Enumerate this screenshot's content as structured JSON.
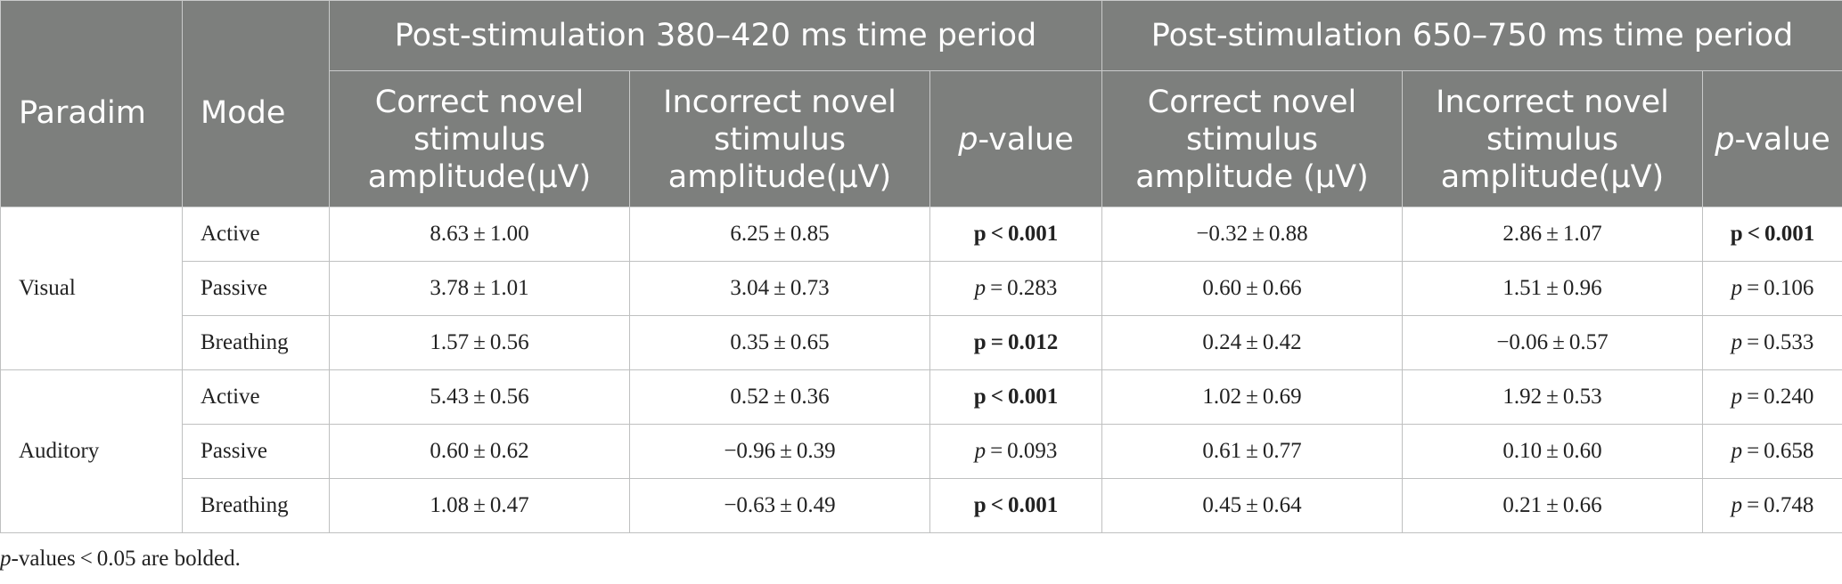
{
  "header": {
    "paradigm": "Paradim",
    "mode": "Mode",
    "group1": "Post-stimulation 380–420 ms time period",
    "group2": "Post-stimulation 650–750 ms time period",
    "correct": "Correct novel stimulus amplitude(μV)",
    "incorrect": "Incorrect novel stimulus amplitude(μV)",
    "correct2": "Correct novel stimulus amplitude (μV)",
    "incorrect2": "Incorrect novel stimulus amplitude(μV)",
    "p_italic": "p",
    "p_rest": "-value"
  },
  "rows": [
    {
      "paradigm": "Visual",
      "mode": "Active",
      "c1": "8.63 ± 1.00",
      "i1": "6.25 ± 0.85",
      "p1_prefix": "p",
      "p1": " < 0.001",
      "p1_bold": true,
      "c2": "−0.32 ± 0.88",
      "i2": "2.86 ± 1.07",
      "p2_prefix": "p",
      "p2": " < 0.001",
      "p2_bold": true
    },
    {
      "paradigm": "",
      "mode": "Passive",
      "c1": "3.78 ± 1.01",
      "i1": "3.04 ± 0.73",
      "p1_prefix": "p",
      "p1": " = 0.283",
      "p1_bold": false,
      "c2": "0.60 ± 0.66",
      "i2": "1.51 ± 0.96",
      "p2_prefix": "p",
      "p2": " = 0.106",
      "p2_bold": false
    },
    {
      "paradigm": "",
      "mode": "Breathing",
      "c1": "1.57 ± 0.56",
      "i1": "0.35 ± 0.65",
      "p1_prefix": "p",
      "p1": " = 0.012",
      "p1_bold": true,
      "c2": "0.24 ± 0.42",
      "i2": "−0.06 ± 0.57",
      "p2_prefix": "p",
      "p2": " = 0.533",
      "p2_bold": false
    },
    {
      "paradigm": "Auditory",
      "mode": "Active",
      "c1": "5.43 ± 0.56",
      "i1": "0.52 ± 0.36",
      "p1_prefix": "p",
      "p1": " < 0.001",
      "p1_bold": true,
      "c2": "1.02 ± 0.69",
      "i2": "1.92 ± 0.53",
      "p2_prefix": "p",
      "p2": " = 0.240",
      "p2_bold": false
    },
    {
      "paradigm": "",
      "mode": "Passive",
      "c1": "0.60 ± 0.62",
      "i1": "−0.96 ± 0.39",
      "p1_prefix": "p",
      "p1": " = 0.093",
      "p1_bold": false,
      "c2": "0.61 ± 0.77",
      "i2": "0.10 ± 0.60",
      "p2_prefix": "p",
      "p2": " = 0.658",
      "p2_bold": false
    },
    {
      "paradigm": "",
      "mode": "Breathing",
      "c1": "1.08 ± 0.47",
      "i1": "−0.63 ± 0.49",
      "p1_prefix": "p",
      "p1": " < 0.001",
      "p1_bold": true,
      "c2": "0.45 ± 0.64",
      "i2": "0.21 ± 0.66",
      "p2_prefix": "p",
      "p2": " = 0.748",
      "p2_bold": false
    }
  ],
  "footnote": {
    "italic": "p",
    "text": "-values < 0.05 are bolded."
  },
  "colors": {
    "header_bg": "#7d7f7d",
    "border": "#bfc0c0"
  }
}
